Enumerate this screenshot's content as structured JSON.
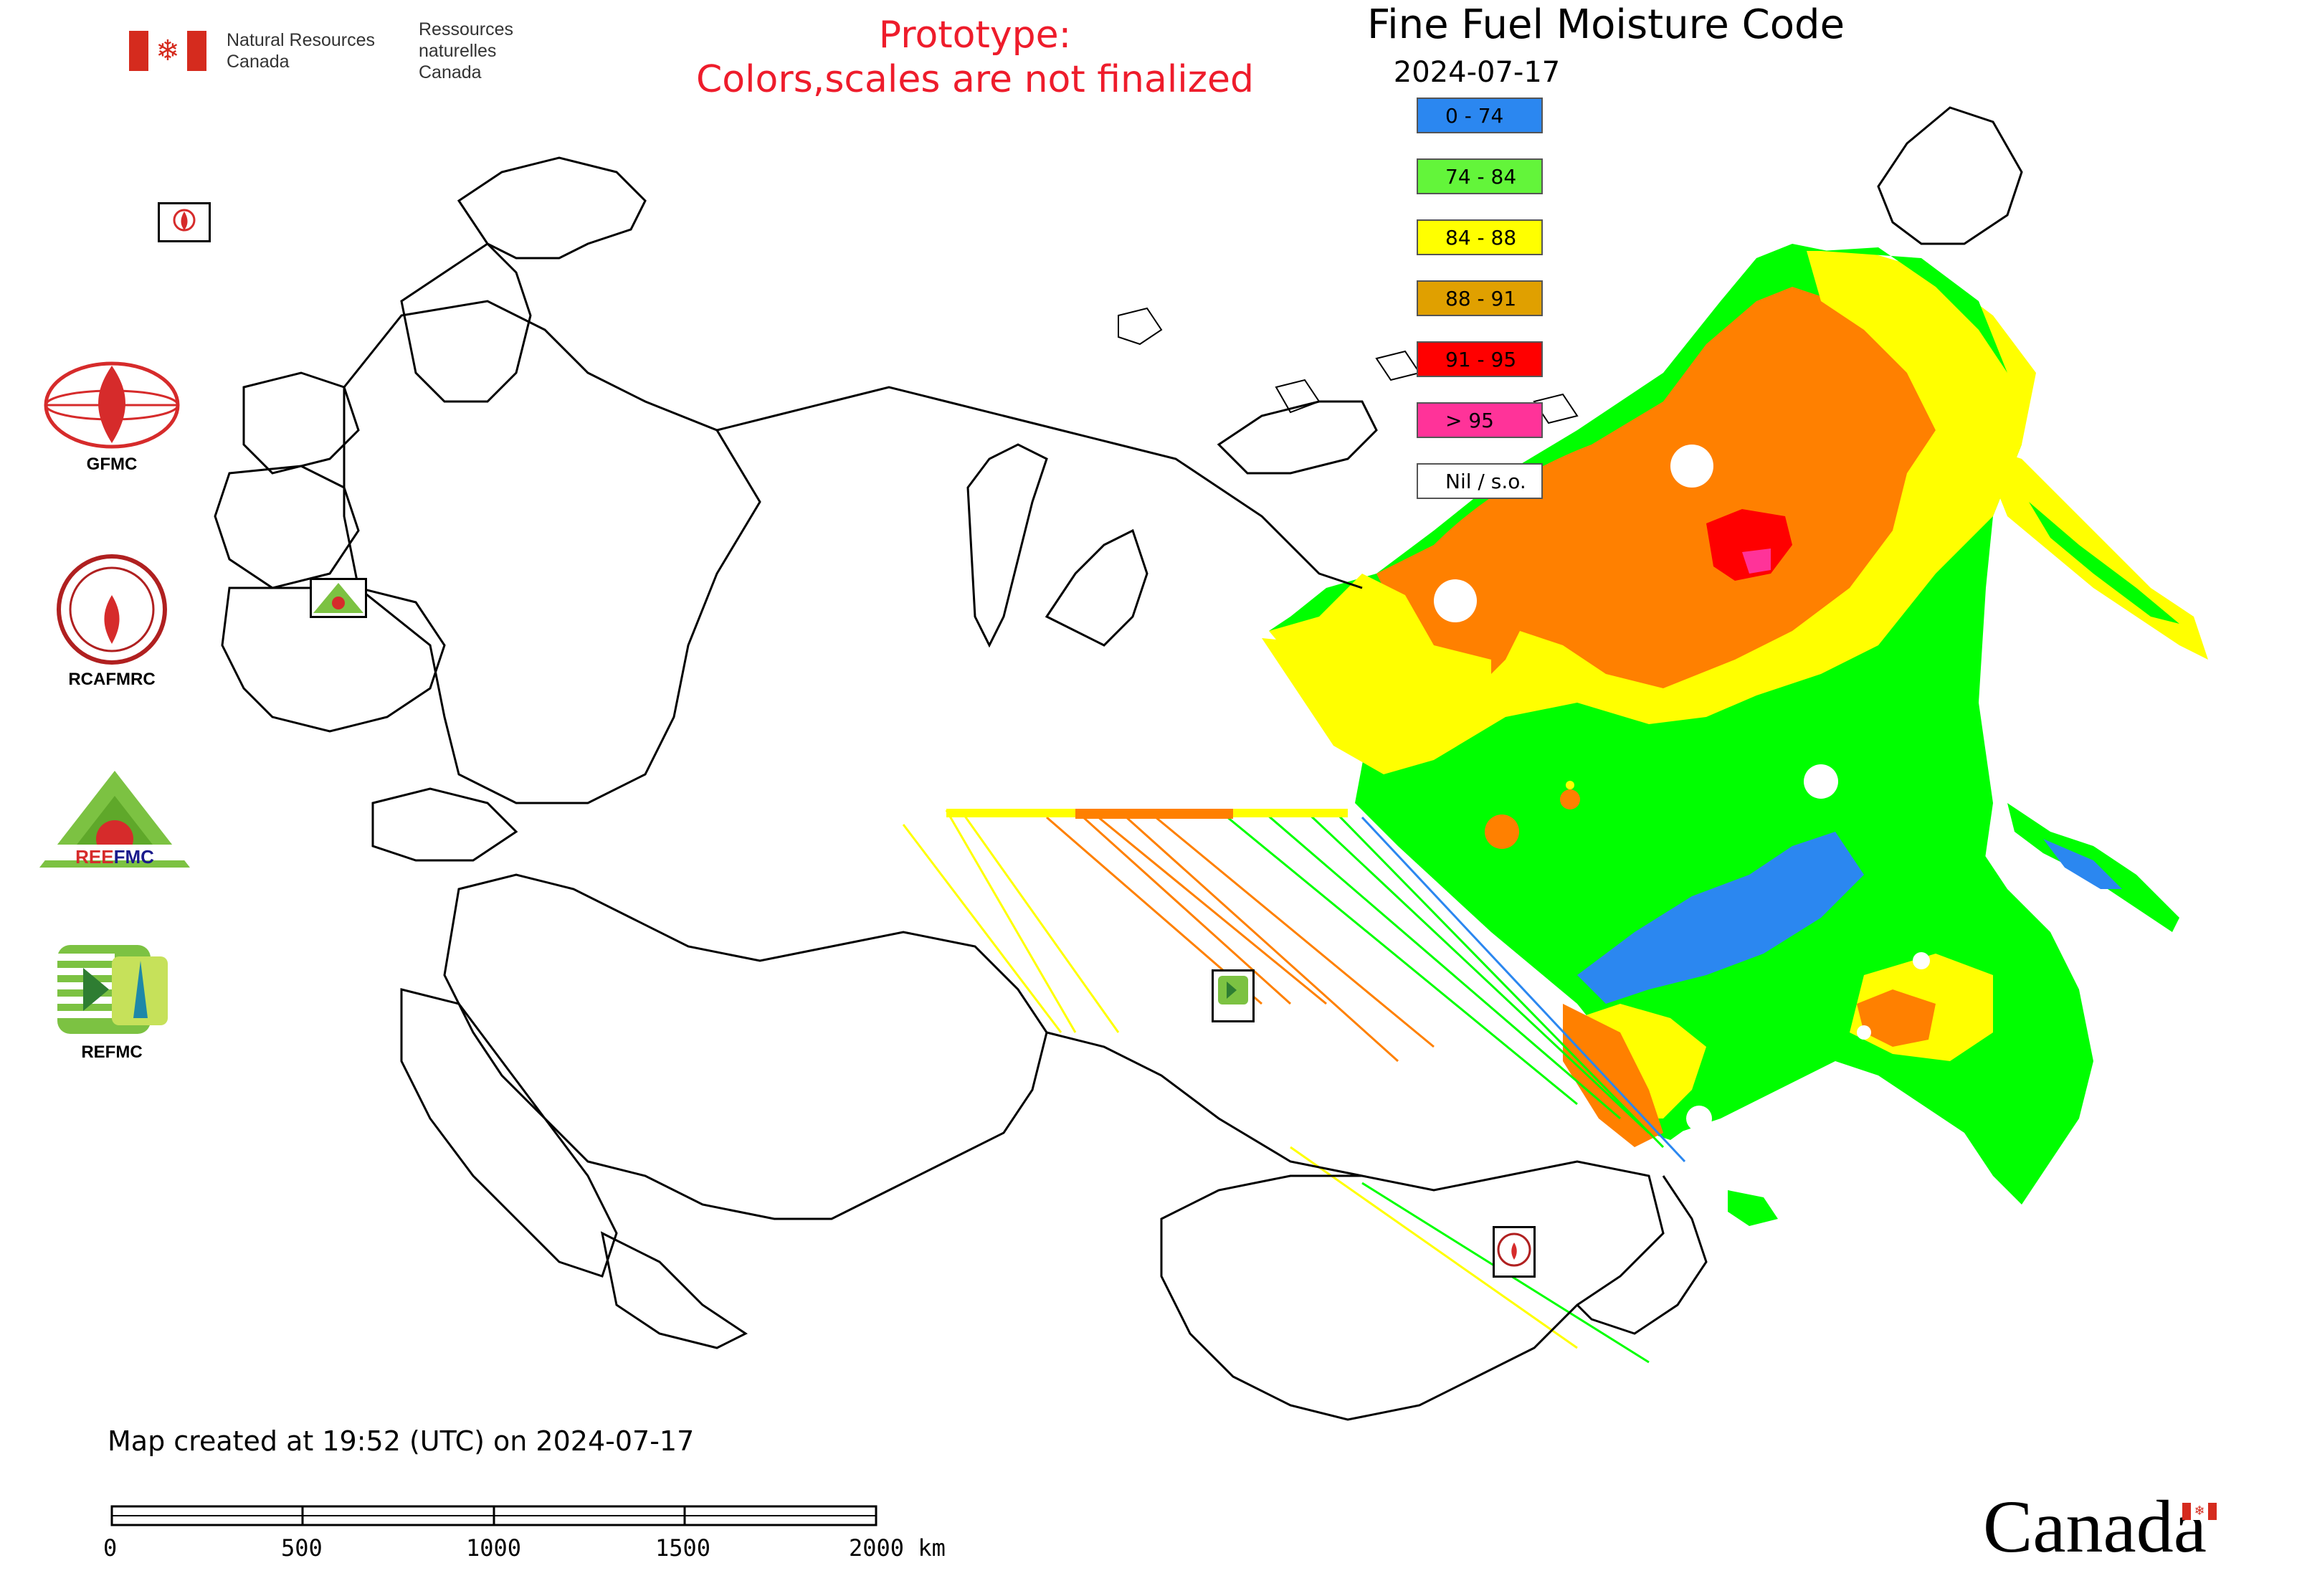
{
  "title": "Fine Fuel Moisture Code",
  "date": "2024-07-17",
  "prototype_notice": {
    "line1": "Prototype:",
    "line2": "Colors,scales are not finalized"
  },
  "gc_signature": {
    "en_line1": "Natural Resources",
    "en_line2": "Canada",
    "fr_line1": "Ressources naturelles",
    "fr_line2": "Canada"
  },
  "legend": {
    "items": [
      {
        "label": "0 - 74",
        "color": "#2b87f0"
      },
      {
        "label": "74 - 84",
        "color": "#63f53a"
      },
      {
        "label": "84 - 88",
        "color": "#ffff00"
      },
      {
        "label": "88 - 91",
        "color": "#e0a000"
      },
      {
        "label": "91 - 95",
        "color": "#ff0000"
      },
      {
        "label": "> 95",
        "color": "#ff3399"
      },
      {
        "label": "Nil / s.o.",
        "color": "#ffffff"
      }
    ]
  },
  "logos": [
    {
      "name": "GFMC",
      "label": "GFMC"
    },
    {
      "name": "RCAFMRC",
      "label": "RCAFMRC"
    },
    {
      "name": "REEFMC",
      "label": "REEFMC"
    },
    {
      "name": "REFMC",
      "label": "REFMC"
    }
  ],
  "footer": "Map created at 19:52 (UTC) on 2024-07-17",
  "scale_bar": {
    "ticks": [
      "0",
      "500",
      "1000",
      "1500",
      "2000 km"
    ]
  },
  "wordmark": "Canada",
  "colors": {
    "blue": "#2b87f0",
    "green": "#00ff00",
    "yellow": "#ffff00",
    "orange": "#ff8000",
    "red": "#ff0000",
    "pink": "#ff3399",
    "border": "#000000"
  }
}
